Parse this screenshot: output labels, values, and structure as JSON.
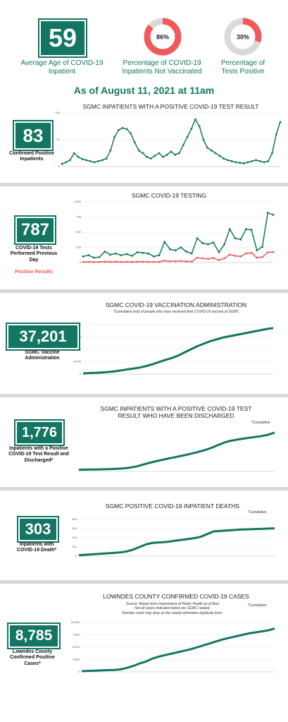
{
  "kpi": {
    "stat": "59",
    "label": "Average Age of COVID-19 Inpatient"
  },
  "date_heading": "As of August 11, 2021 at 11am",
  "panels": [
    {
      "stat": "83",
      "label": "Confirmed Positive Inpatients"
    },
    {
      "stat": "787"
    },
    {
      "stat": "37,201",
      "label": "SGMC Vaccine Administration"
    },
    {
      "stat": "1,776",
      "label": "Inpatients with a Positive COVID-19 Test Result and Discharged*"
    },
    {
      "stat": "303",
      "label": "Inpatients with COVID-19 Death*"
    },
    {
      "stat": "8,785",
      "label": "Lowndes County Confirmed Positive Cases*"
    }
  ],
  "chart_data": [
    {
      "type": "donut",
      "title": "Percentage of COVID-19 Inpatients Not Vaccinated",
      "values": [
        86
      ],
      "value_labels": [
        "86%"
      ],
      "color": "#f05a5a",
      "track_color": "#d9d9d9"
    },
    {
      "type": "donut",
      "title": "Percentage of Tests Positive",
      "values": [
        30
      ],
      "value_labels": [
        "30%"
      ],
      "color": "#f05a5a",
      "track_color": "#d9d9d9"
    },
    {
      "type": "line",
      "title": "SGMC INPATIENTS WITH A POSITIVE COVID-19 TEST RESULT",
      "color": "#137562",
      "markers": true,
      "values": [
        5,
        8,
        12,
        25,
        18,
        14,
        12,
        10,
        8,
        10,
        12,
        15,
        30,
        55,
        68,
        72,
        70,
        62,
        45,
        30,
        25,
        18,
        15,
        20,
        25,
        18,
        22,
        28,
        22,
        25,
        40,
        55,
        70,
        88,
        75,
        50,
        35,
        30,
        25,
        20,
        15,
        12,
        10,
        8,
        7,
        6,
        8,
        10,
        12,
        10,
        8,
        10,
        25,
        60,
        83
      ],
      "ylim": [
        0,
        100
      ],
      "yticks": [
        0,
        50,
        100
      ],
      "grid": true
    },
    {
      "type": "line",
      "title": "SGMC COVID-19 TESTING",
      "markers": true,
      "series": [
        {
          "name": "COVID-19 Tests Performed Previous Day",
          "color": "#137562",
          "values": [
            100,
            120,
            80,
            90,
            180,
            130,
            150,
            120,
            140,
            110,
            170,
            160,
            150,
            100,
            120,
            340,
            220,
            200,
            250,
            180,
            150,
            400,
            320,
            300,
            330,
            170,
            300,
            550,
            400,
            380,
            550,
            540,
            200,
            260,
            820,
            787
          ]
        },
        {
          "name": "Positive Results",
          "color": "#f05a5a",
          "values": [
            10,
            12,
            8,
            10,
            15,
            12,
            14,
            10,
            12,
            10,
            15,
            14,
            12,
            10,
            12,
            30,
            22,
            20,
            25,
            18,
            15,
            80,
            70,
            60,
            75,
            40,
            70,
            130,
            110,
            100,
            150,
            160,
            80,
            90,
            170,
            170
          ]
        }
      ],
      "ylim": [
        0,
        1000
      ],
      "yticks": [
        0,
        250,
        500,
        750,
        {
          "value": 1000,
          "label": "1,000"
        }
      ],
      "grid": true
    },
    {
      "type": "line",
      "title": "SGMC COVID-19 VACCINATION ADMINISTRATION",
      "subtitle": "*Cumulative total of people who have received their COVID-19 vaccine at SGMC",
      "color": "#137562",
      "values": [
        500,
        800,
        1000,
        1300,
        1700,
        2200,
        3000,
        3800,
        4500,
        5300,
        6500,
        8000,
        9800,
        11500,
        13000,
        15000,
        17500,
        20000,
        22500,
        24500,
        26500,
        28000,
        29500,
        30500,
        31500,
        32500,
        33500,
        34500,
        35500,
        36500,
        37201
      ],
      "ylim": [
        0,
        40000
      ],
      "yticks": [
        0,
        10000,
        20000,
        30000,
        40000
      ],
      "grid": true
    },
    {
      "type": "line",
      "title": "SGMC INPATIENTS WITH A POSITIVE COVID-19 TEST RESULT WHO HAVE BEEN DISCHARGED",
      "subtitle": "*Cumulative",
      "color": "#137562",
      "values": [
        80,
        85,
        90,
        95,
        100,
        110,
        120,
        140,
        170,
        220,
        300,
        380,
        450,
        520,
        580,
        640,
        700,
        760,
        830,
        900,
        980,
        1080,
        1200,
        1320,
        1400,
        1450,
        1500,
        1540,
        1580,
        1620,
        1680,
        1776
      ],
      "ylim": [
        0,
        2000
      ]
    },
    {
      "type": "line",
      "title": "SGMC POSITIVE COVID-19 INPATIENT DEATHS",
      "subtitle": "*Cumulative",
      "color": "#137562",
      "values": [
        10,
        15,
        20,
        25,
        30,
        35,
        40,
        50,
        70,
        100,
        130,
        145,
        150,
        155,
        165,
        175,
        185,
        195,
        210,
        240,
        270,
        275,
        280,
        285,
        290,
        292,
        295,
        297,
        300,
        303
      ],
      "ylim": [
        0,
        400
      ],
      "yticks": [
        0,
        100,
        200,
        300,
        400
      ],
      "grid": true
    },
    {
      "type": "line",
      "title": "LOWNDES COUNTY CONFIRMED COVID-19 CASES",
      "subtitle": "*Cumulative",
      "source": [
        "Source: Report from Department of Public Health as of 8am",
        "Not all cases indicated below are SGMC related.",
        "Number count may drop as the county eliminates duplicate tests."
      ],
      "color": "#137562",
      "values": [
        150,
        200,
        250,
        300,
        350,
        400,
        500,
        800,
        1200,
        1700,
        2100,
        2700,
        3100,
        3400,
        3700,
        4000,
        4300,
        4600,
        5000,
        5400,
        5800,
        6200,
        6600,
        6900,
        7200,
        7500,
        7800,
        8000,
        8200,
        8400,
        8785
      ],
      "ylim": [
        0,
        10000
      ],
      "yticks": [
        0,
        {
          "value": 2500,
          "label": "2,500"
        },
        {
          "value": 5000,
          "label": "5,000"
        },
        {
          "value": 7500,
          "label": "7,500"
        },
        {
          "value": 10000,
          "label": "10,000"
        }
      ],
      "grid": true
    }
  ]
}
